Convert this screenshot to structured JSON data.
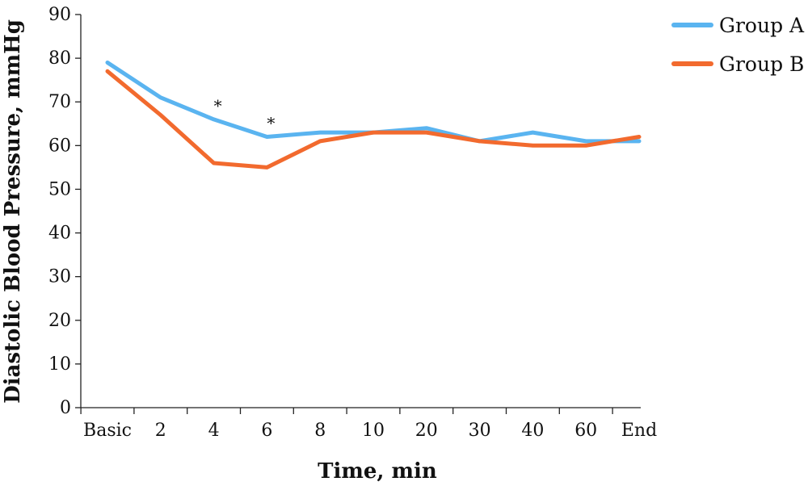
{
  "chart_data": {
    "type": "line",
    "categories": [
      "Basic",
      "2",
      "4",
      "6",
      "8",
      "10",
      "20",
      "30",
      "40",
      "60",
      "End"
    ],
    "series": [
      {
        "name": "Group A",
        "color": "#5ab4f0",
        "values": [
          79,
          71,
          66,
          62,
          63,
          63,
          64,
          61,
          63,
          61,
          61
        ]
      },
      {
        "name": "Group B",
        "color": "#f26a2e",
        "values": [
          77,
          67,
          56,
          55,
          61,
          63,
          63,
          61,
          60,
          60,
          62
        ]
      }
    ],
    "xlabel": "Time, min",
    "ylabel": "Diastolic Blood Pressure, mmHg",
    "ylim": [
      0,
      90
    ],
    "yticks": [
      0,
      10,
      20,
      30,
      40,
      50,
      60,
      70,
      80,
      90
    ],
    "grid": false,
    "legend_position": "top-right",
    "annotations": [
      {
        "category": "4",
        "text": "*"
      },
      {
        "category": "6",
        "text": "*"
      }
    ]
  }
}
